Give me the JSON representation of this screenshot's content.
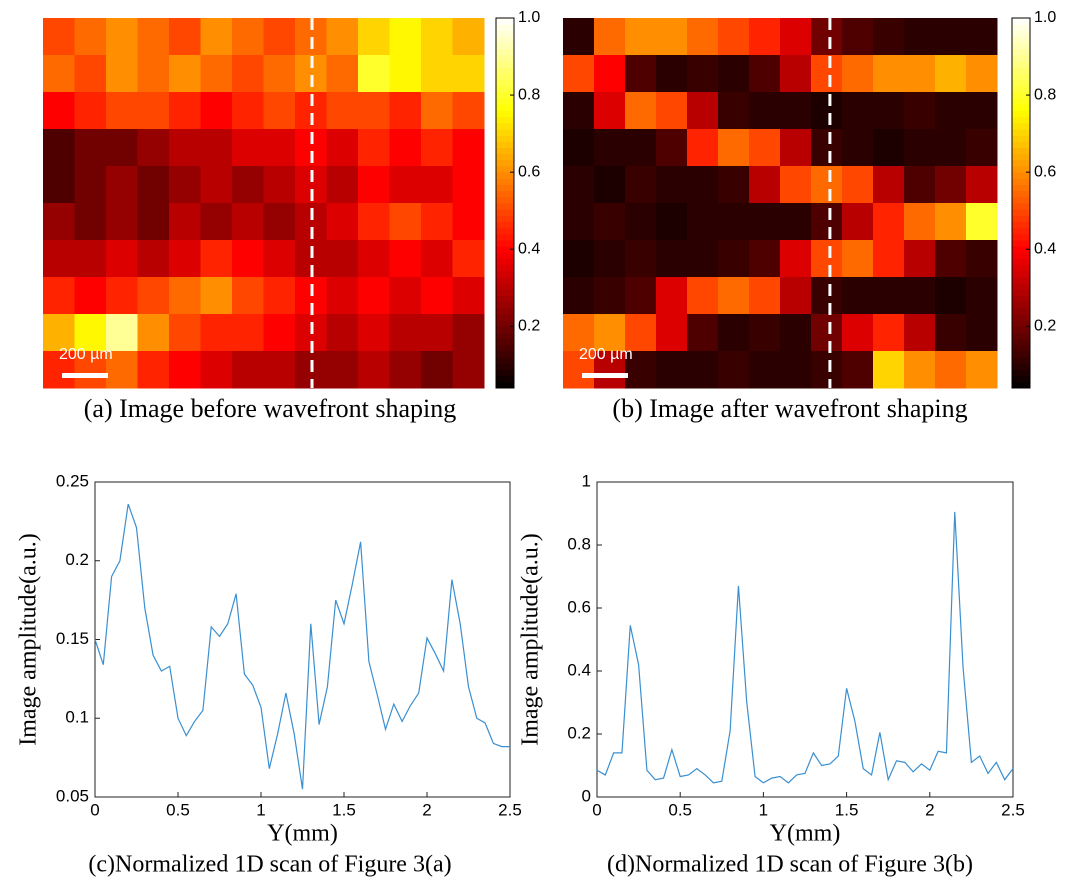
{
  "chart_data": [
    {
      "type": "heatmap",
      "caption": "(a) Image before wavefront shaping",
      "annotation": "200 µm",
      "colormap": "hot",
      "clim": [
        0.04,
        1
      ],
      "cbticks": [
        0.2,
        0.4,
        0.6,
        0.8,
        {
          "value": 1,
          "label": "1.0"
        }
      ],
      "values": [
        [
          0.5,
          0.55,
          0.6,
          0.55,
          0.5,
          0.6,
          0.55,
          0.5,
          0.55,
          0.6,
          0.7,
          0.75,
          0.7,
          0.65
        ],
        [
          0.55,
          0.5,
          0.6,
          0.55,
          0.6,
          0.55,
          0.5,
          0.55,
          0.6,
          0.55,
          0.8,
          0.75,
          0.7,
          0.7
        ],
        [
          0.4,
          0.45,
          0.5,
          0.5,
          0.45,
          0.4,
          0.45,
          0.5,
          0.45,
          0.5,
          0.5,
          0.45,
          0.55,
          0.5
        ],
        [
          0.15,
          0.2,
          0.2,
          0.25,
          0.3,
          0.3,
          0.35,
          0.35,
          0.4,
          0.35,
          0.45,
          0.4,
          0.45,
          0.4
        ],
        [
          0.15,
          0.2,
          0.25,
          0.2,
          0.25,
          0.3,
          0.25,
          0.3,
          0.35,
          0.3,
          0.4,
          0.35,
          0.35,
          0.4
        ],
        [
          0.25,
          0.2,
          0.25,
          0.2,
          0.3,
          0.25,
          0.3,
          0.25,
          0.3,
          0.35,
          0.45,
          0.5,
          0.45,
          0.4
        ],
        [
          0.3,
          0.3,
          0.35,
          0.3,
          0.35,
          0.45,
          0.4,
          0.35,
          0.3,
          0.3,
          0.35,
          0.4,
          0.35,
          0.45
        ],
        [
          0.45,
          0.4,
          0.45,
          0.5,
          0.55,
          0.6,
          0.5,
          0.45,
          0.4,
          0.35,
          0.4,
          0.35,
          0.4,
          0.35
        ],
        [
          0.65,
          0.75,
          0.9,
          0.6,
          0.5,
          0.45,
          0.45,
          0.4,
          0.35,
          0.3,
          0.35,
          0.3,
          0.3,
          0.25
        ],
        [
          0.45,
          0.5,
          0.55,
          0.45,
          0.4,
          0.35,
          0.3,
          0.3,
          0.25,
          0.25,
          0.3,
          0.25,
          0.2,
          0.25
        ]
      ]
    },
    {
      "type": "heatmap",
      "caption": "(b) Image after wavefront shaping",
      "annotation": "200 µm",
      "colormap": "hot",
      "clim": [
        0.04,
        1
      ],
      "cbticks": [
        0.2,
        0.4,
        0.6,
        0.8,
        {
          "value": 1,
          "label": "1.0"
        }
      ],
      "values": [
        [
          0.1,
          0.55,
          0.6,
          0.6,
          0.55,
          0.5,
          0.45,
          0.35,
          0.2,
          0.15,
          0.12,
          0.1,
          0.1,
          0.1
        ],
        [
          0.5,
          0.4,
          0.15,
          0.1,
          0.12,
          0.1,
          0.15,
          0.3,
          0.5,
          0.55,
          0.6,
          0.6,
          0.65,
          0.6
        ],
        [
          0.1,
          0.35,
          0.55,
          0.5,
          0.3,
          0.12,
          0.1,
          0.1,
          0.08,
          0.1,
          0.1,
          0.12,
          0.1,
          0.1
        ],
        [
          0.08,
          0.1,
          0.1,
          0.15,
          0.45,
          0.55,
          0.5,
          0.3,
          0.12,
          0.1,
          0.08,
          0.1,
          0.1,
          0.12
        ],
        [
          0.1,
          0.08,
          0.12,
          0.1,
          0.1,
          0.12,
          0.3,
          0.5,
          0.55,
          0.5,
          0.3,
          0.15,
          0.2,
          0.3
        ],
        [
          0.1,
          0.12,
          0.1,
          0.08,
          0.1,
          0.1,
          0.1,
          0.1,
          0.15,
          0.3,
          0.45,
          0.55,
          0.6,
          0.8
        ],
        [
          0.08,
          0.1,
          0.12,
          0.1,
          0.1,
          0.12,
          0.15,
          0.35,
          0.5,
          0.55,
          0.45,
          0.3,
          0.15,
          0.12
        ],
        [
          0.1,
          0.12,
          0.15,
          0.35,
          0.5,
          0.55,
          0.5,
          0.3,
          0.12,
          0.1,
          0.1,
          0.1,
          0.08,
          0.1
        ],
        [
          0.55,
          0.6,
          0.5,
          0.35,
          0.15,
          0.1,
          0.12,
          0.1,
          0.2,
          0.35,
          0.45,
          0.3,
          0.12,
          0.1
        ],
        [
          0.5,
          0.3,
          0.12,
          0.1,
          0.1,
          0.12,
          0.1,
          0.1,
          0.12,
          0.15,
          0.7,
          0.6,
          0.55,
          0.6
        ]
      ]
    },
    {
      "type": "line",
      "caption": "(c)Normalized 1D scan of Figure 3(a)",
      "xlabel": "Y(mm)",
      "ylabel": "Image amplitude(a.u.)",
      "color": "#3a8fd0",
      "xlim": [
        0,
        2.5
      ],
      "ylim": [
        0.05,
        0.25
      ],
      "xticks": [
        0,
        0.5,
        1,
        1.5,
        2,
        2.5
      ],
      "yticks": [
        0.05,
        0.1,
        0.15,
        0.2,
        0.25
      ],
      "x": [
        0,
        0.05,
        0.1,
        0.15,
        0.2,
        0.25,
        0.3,
        0.35,
        0.4,
        0.45,
        0.5,
        0.55,
        0.6,
        0.65,
        0.7,
        0.75,
        0.8,
        0.85,
        0.9,
        0.95,
        1,
        1.05,
        1.1,
        1.15,
        1.2,
        1.25,
        1.3,
        1.35,
        1.4,
        1.45,
        1.5,
        1.55,
        1.6,
        1.65,
        1.7,
        1.75,
        1.8,
        1.85,
        1.9,
        1.95,
        2,
        2.05,
        2.1,
        2.15,
        2.2,
        2.25,
        2.3,
        2.35,
        2.4,
        2.45,
        2.5
      ],
      "values": [
        0.15,
        0.134,
        0.19,
        0.2,
        0.236,
        0.221,
        0.17,
        0.14,
        0.13,
        0.133,
        0.1,
        0.089,
        0.098,
        0.105,
        0.158,
        0.152,
        0.16,
        0.179,
        0.128,
        0.121,
        0.107,
        0.068,
        0.09,
        0.116,
        0.09,
        0.055,
        0.16,
        0.096,
        0.12,
        0.175,
        0.16,
        0.185,
        0.212,
        0.136,
        0.115,
        0.093,
        0.109,
        0.098,
        0.108,
        0.116,
        0.151,
        0.141,
        0.13,
        0.188,
        0.16,
        0.12,
        0.1,
        0.097,
        0.084,
        0.082,
        0.082
      ]
    },
    {
      "type": "line",
      "caption": "(d)Normalized 1D scan of Figure 3(b)",
      "xlabel": "Y(mm)",
      "ylabel": "Image amplitude(a.u.)",
      "color": "#3a8fd0",
      "xlim": [
        0,
        2.5
      ],
      "ylim": [
        0,
        1
      ],
      "xticks": [
        0,
        0.5,
        1,
        1.5,
        2,
        2.5
      ],
      "yticks": [
        0,
        0.2,
        0.4,
        0.6,
        0.8,
        1
      ],
      "x": [
        0,
        0.05,
        0.1,
        0.15,
        0.2,
        0.25,
        0.3,
        0.35,
        0.4,
        0.45,
        0.5,
        0.55,
        0.6,
        0.65,
        0.7,
        0.75,
        0.8,
        0.85,
        0.9,
        0.95,
        1,
        1.05,
        1.1,
        1.15,
        1.2,
        1.25,
        1.3,
        1.35,
        1.4,
        1.45,
        1.5,
        1.55,
        1.6,
        1.65,
        1.7,
        1.75,
        1.8,
        1.85,
        1.9,
        1.95,
        2,
        2.05,
        2.1,
        2.15,
        2.2,
        2.25,
        2.3,
        2.35,
        2.4,
        2.45,
        2.5
      ],
      "values": [
        0.085,
        0.07,
        0.14,
        0.14,
        0.545,
        0.42,
        0.085,
        0.055,
        0.06,
        0.15,
        0.065,
        0.07,
        0.09,
        0.07,
        0.045,
        0.05,
        0.21,
        0.67,
        0.3,
        0.065,
        0.045,
        0.06,
        0.065,
        0.045,
        0.07,
        0.075,
        0.14,
        0.1,
        0.105,
        0.13,
        0.345,
        0.24,
        0.09,
        0.07,
        0.205,
        0.055,
        0.115,
        0.11,
        0.08,
        0.105,
        0.085,
        0.145,
        0.14,
        0.905,
        0.41,
        0.11,
        0.13,
        0.075,
        0.11,
        0.055,
        0.09
      ]
    }
  ]
}
